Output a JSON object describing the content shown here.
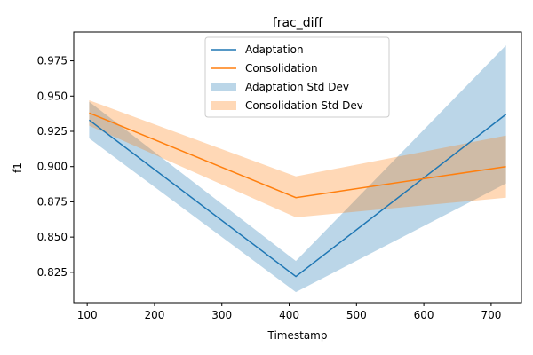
{
  "chart_data": {
    "type": "line",
    "title": "frac_diff",
    "xlabel": "Timestamp",
    "ylabel": "f1",
    "x": [
      103,
      410,
      722
    ],
    "xlim": [
      80,
      745
    ],
    "ylim": [
      0.8035,
      0.9955
    ],
    "xticks": [
      {
        "value": 100,
        "label": "100"
      },
      {
        "value": 200,
        "label": "200"
      },
      {
        "value": 300,
        "label": "300"
      },
      {
        "value": 400,
        "label": "400"
      },
      {
        "value": 500,
        "label": "500"
      },
      {
        "value": 600,
        "label": "600"
      },
      {
        "value": 700,
        "label": "700"
      }
    ],
    "yticks": [
      {
        "value": 0.825,
        "label": "0.825"
      },
      {
        "value": 0.85,
        "label": "0.850"
      },
      {
        "value": 0.875,
        "label": "0.875"
      },
      {
        "value": 0.9,
        "label": "0.900"
      },
      {
        "value": 0.925,
        "label": "0.925"
      },
      {
        "value": 0.95,
        "label": "0.950"
      },
      {
        "value": 0.975,
        "label": "0.975"
      }
    ],
    "grid": false,
    "legend_position": "top-center",
    "series": [
      {
        "name": "Adaptation",
        "color": "#1f77b4",
        "values": [
          0.933,
          0.822,
          0.937
        ],
        "band_name": "Adaptation Std Dev",
        "band_color": "#1f77b4",
        "lower": [
          0.92,
          0.811,
          0.888
        ],
        "upper": [
          0.946,
          0.833,
          0.986
        ]
      },
      {
        "name": "Consolidation",
        "color": "#ff7f0e",
        "values": [
          0.938,
          0.878,
          0.9
        ],
        "band_name": "Consolidation Std Dev",
        "band_color": "#ff7f0e",
        "lower": [
          0.929,
          0.864,
          0.878
        ],
        "upper": [
          0.947,
          0.893,
          0.922
        ]
      }
    ]
  }
}
